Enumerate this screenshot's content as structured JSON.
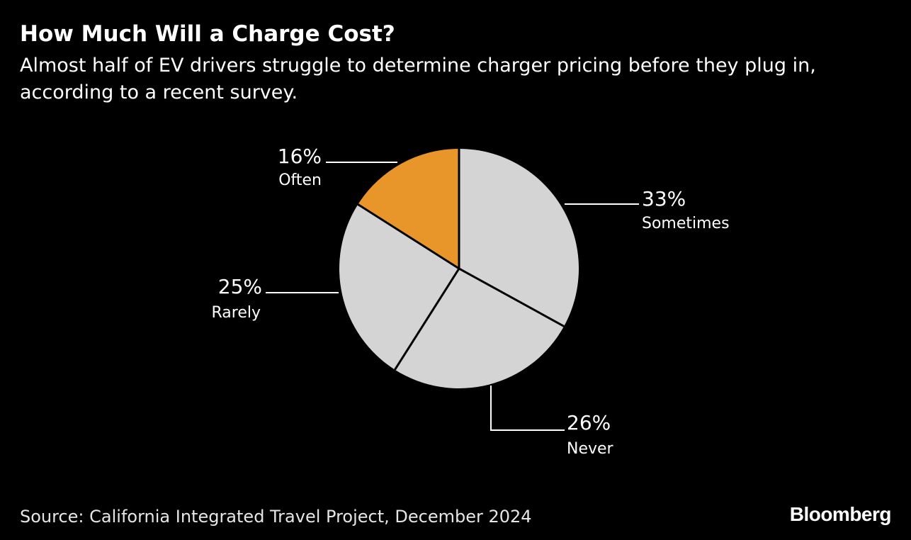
{
  "header": {
    "title": "How Much Will a Charge Cost?",
    "subtitle": "Almost half of EV drivers struggle to determine charger pricing before they plug in, according to a recent survey."
  },
  "footer": {
    "source": "Source: California Integrated Travel Project, December 2024",
    "brand": "Bloomberg"
  },
  "colors": {
    "background": "#000000",
    "highlight": "#E8962A",
    "slice": "#D4D4D4",
    "divider": "#000000",
    "text": "#FFFFFF"
  },
  "chart_data": {
    "type": "pie",
    "title": "How Much Will a Charge Cost?",
    "start": "12 o'clock",
    "direction": "clockwise",
    "slices": [
      {
        "label": "Sometimes",
        "value": 33,
        "display": "33%",
        "color": "#D4D4D4"
      },
      {
        "label": "Never",
        "value": 26,
        "display": "26%",
        "color": "#D4D4D4"
      },
      {
        "label": "Rarely",
        "value": 25,
        "display": "25%",
        "color": "#D4D4D4"
      },
      {
        "label": "Often",
        "value": 16,
        "display": "16%",
        "color": "#E8962A"
      }
    ]
  }
}
